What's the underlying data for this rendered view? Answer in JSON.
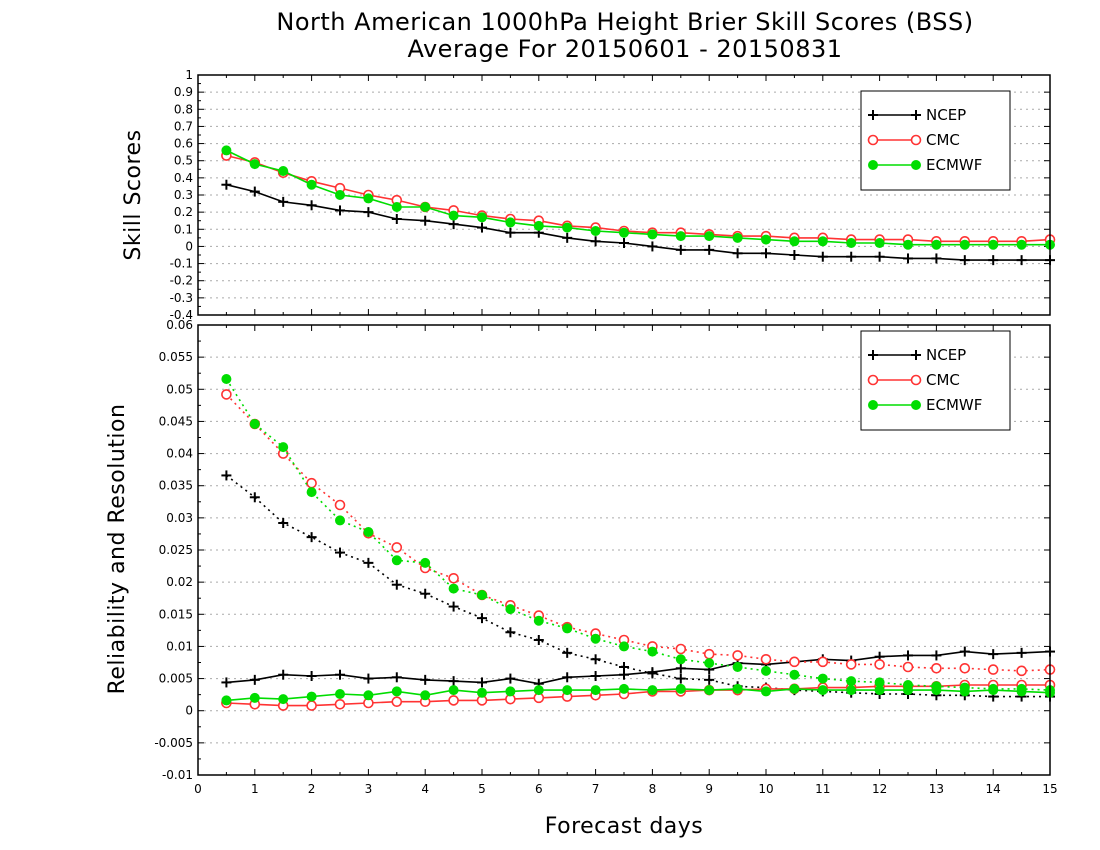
{
  "title": {
    "line1": "North American 1000hPa Height Brier Skill Scores (BSS)",
    "line2": "Average For 20150601 - 20150831"
  },
  "chart_data": [
    {
      "type": "line",
      "ylabel": "Skill Scores",
      "xlabel": "",
      "xlim": [
        0,
        15
      ],
      "ylim": [
        -0.4,
        1
      ],
      "yticks": [
        "-0.4",
        "-0.3",
        "-0.2",
        "-0.1",
        "0",
        "0.1",
        "0.2",
        "0.3",
        "0.4",
        "0.5",
        "0.6",
        "0.7",
        "0.8",
        "0.9",
        "1"
      ],
      "xticks": [],
      "grid": "horizontal dotted",
      "legend": {
        "placement": "top-right",
        "entries": [
          {
            "name": "NCEP",
            "color": "#000000",
            "marker": "plus"
          },
          {
            "name": "CMC",
            "color": "#ff3333",
            "marker": "open-circle"
          },
          {
            "name": "ECMWF",
            "color": "#00dd00",
            "marker": "filled-circle"
          }
        ]
      },
      "x": [
        0.5,
        1,
        1.5,
        2,
        2.5,
        3,
        3.5,
        4,
        4.5,
        5,
        5.5,
        6,
        6.5,
        7,
        7.5,
        8,
        8.5,
        9,
        9.5,
        10,
        10.5,
        11,
        11.5,
        12,
        12.5,
        13,
        13.5,
        14,
        14.5,
        15
      ],
      "series": [
        {
          "name": "NCEP",
          "color": "#000000",
          "marker": "plus",
          "style": "solid",
          "values": [
            0.36,
            0.32,
            0.26,
            0.24,
            0.21,
            0.2,
            0.16,
            0.15,
            0.13,
            0.11,
            0.08,
            0.08,
            0.05,
            0.03,
            0.02,
            0.0,
            -0.02,
            -0.02,
            -0.04,
            -0.04,
            -0.05,
            -0.06,
            -0.06,
            -0.06,
            -0.07,
            -0.07,
            -0.08,
            -0.08,
            -0.08,
            -0.08
          ]
        },
        {
          "name": "CMC",
          "color": "#ff3333",
          "marker": "open-circle",
          "style": "solid",
          "values": [
            0.53,
            0.49,
            0.43,
            0.38,
            0.34,
            0.3,
            0.27,
            0.23,
            0.21,
            0.18,
            0.16,
            0.15,
            0.12,
            0.11,
            0.09,
            0.08,
            0.08,
            0.07,
            0.06,
            0.06,
            0.05,
            0.05,
            0.04,
            0.04,
            0.04,
            0.03,
            0.03,
            0.03,
            0.03,
            0.04
          ]
        },
        {
          "name": "ECMWF",
          "color": "#00dd00",
          "marker": "filled-circle",
          "style": "solid",
          "values": [
            0.56,
            0.48,
            0.44,
            0.36,
            0.3,
            0.28,
            0.23,
            0.23,
            0.18,
            0.17,
            0.14,
            0.12,
            0.11,
            0.09,
            0.08,
            0.07,
            0.06,
            0.06,
            0.05,
            0.04,
            0.03,
            0.03,
            0.02,
            0.02,
            0.01,
            0.01,
            0.01,
            0.01,
            0.01,
            0.01
          ]
        }
      ]
    },
    {
      "type": "line",
      "ylabel": "Reliability and Resolution",
      "xlabel": "Forecast days",
      "xlim": [
        0,
        15
      ],
      "ylim": [
        -0.01,
        0.06
      ],
      "yticks": [
        "-0.01",
        "-0.005",
        "0",
        "0.005",
        "0.01",
        "0.015",
        "0.02",
        "0.025",
        "0.03",
        "0.035",
        "0.04",
        "0.045",
        "0.05",
        "0.055",
        "0.06"
      ],
      "xticks": [
        "0",
        "1",
        "2",
        "3",
        "4",
        "5",
        "6",
        "7",
        "8",
        "9",
        "10",
        "11",
        "12",
        "13",
        "14",
        "15"
      ],
      "grid": "horizontal dotted",
      "legend": {
        "placement": "top-right",
        "entries": [
          {
            "name": "NCEP",
            "color": "#000000",
            "marker": "plus"
          },
          {
            "name": "CMC",
            "color": "#ff3333",
            "marker": "open-circle"
          },
          {
            "name": "ECMWF",
            "color": "#00dd00",
            "marker": "filled-circle"
          }
        ]
      },
      "x": [
        0.5,
        1,
        1.5,
        2,
        2.5,
        3,
        3.5,
        4,
        4.5,
        5,
        5.5,
        6,
        6.5,
        7,
        7.5,
        8,
        8.5,
        9,
        9.5,
        10,
        10.5,
        11,
        11.5,
        12,
        12.5,
        13,
        13.5,
        14,
        14.5,
        15
      ],
      "series": [
        {
          "name": "NCEP",
          "color": "#000000",
          "marker": "plus",
          "style": "solid",
          "values": [
            0.0044,
            0.0048,
            0.0056,
            0.0054,
            0.0056,
            0.005,
            0.0052,
            0.0048,
            0.0046,
            0.0044,
            0.005,
            0.0042,
            0.0052,
            0.0054,
            0.0056,
            0.006,
            0.0066,
            0.0064,
            0.0074,
            0.0072,
            0.0076,
            0.008,
            0.0078,
            0.0084,
            0.0086,
            0.0086,
            0.0092,
            0.0088,
            0.009,
            0.0092
          ]
        },
        {
          "name": "NCEP",
          "color": "#000000",
          "marker": "plus",
          "style": "dotted",
          "values": [
            0.0366,
            0.0332,
            0.0292,
            0.027,
            0.0246,
            0.023,
            0.0196,
            0.0182,
            0.0162,
            0.0144,
            0.0122,
            0.011,
            0.009,
            0.008,
            0.0068,
            0.0058,
            0.005,
            0.0048,
            0.0038,
            0.0036,
            0.0032,
            0.003,
            0.0028,
            0.0026,
            0.0026,
            0.0024,
            0.0024,
            0.0022,
            0.0022,
            0.0022
          ]
        },
        {
          "name": "CMC",
          "color": "#ff3333",
          "marker": "open-circle",
          "style": "solid",
          "values": [
            0.0012,
            0.001,
            0.0008,
            0.0008,
            0.001,
            0.0012,
            0.0014,
            0.0014,
            0.0016,
            0.0016,
            0.0018,
            0.002,
            0.0022,
            0.0024,
            0.0026,
            0.003,
            0.003,
            0.0032,
            0.0032,
            0.0034,
            0.0034,
            0.0036,
            0.0036,
            0.0038,
            0.0038,
            0.0038,
            0.004,
            0.004,
            0.004,
            0.004
          ]
        },
        {
          "name": "CMC",
          "color": "#ff3333",
          "marker": "open-circle",
          "style": "dotted",
          "values": [
            0.0492,
            0.0446,
            0.04,
            0.0354,
            0.032,
            0.0276,
            0.0254,
            0.0222,
            0.0206,
            0.018,
            0.0164,
            0.0148,
            0.013,
            0.012,
            0.011,
            0.01,
            0.0096,
            0.0088,
            0.0086,
            0.008,
            0.0076,
            0.0076,
            0.0072,
            0.0072,
            0.0068,
            0.0066,
            0.0066,
            0.0064,
            0.0062,
            0.0064
          ]
        },
        {
          "name": "ECMWF",
          "color": "#00dd00",
          "marker": "filled-circle",
          "style": "solid",
          "values": [
            0.0016,
            0.002,
            0.0018,
            0.0022,
            0.0026,
            0.0024,
            0.003,
            0.0024,
            0.0032,
            0.0028,
            0.003,
            0.0032,
            0.0032,
            0.0032,
            0.0034,
            0.0032,
            0.0034,
            0.0032,
            0.0034,
            0.003,
            0.0034,
            0.0032,
            0.0032,
            0.0032,
            0.0032,
            0.0032,
            0.003,
            0.0032,
            0.003,
            0.0028
          ]
        },
        {
          "name": "ECMWF",
          "color": "#00dd00",
          "marker": "filled-circle",
          "style": "dotted",
          "values": [
            0.0516,
            0.0446,
            0.041,
            0.034,
            0.0296,
            0.0278,
            0.0234,
            0.023,
            0.019,
            0.018,
            0.0158,
            0.014,
            0.0128,
            0.0112,
            0.01,
            0.0092,
            0.008,
            0.0074,
            0.0068,
            0.0062,
            0.0056,
            0.005,
            0.0046,
            0.0044,
            0.004,
            0.0038,
            0.0036,
            0.0034,
            0.0034,
            0.0032
          ]
        }
      ]
    }
  ]
}
